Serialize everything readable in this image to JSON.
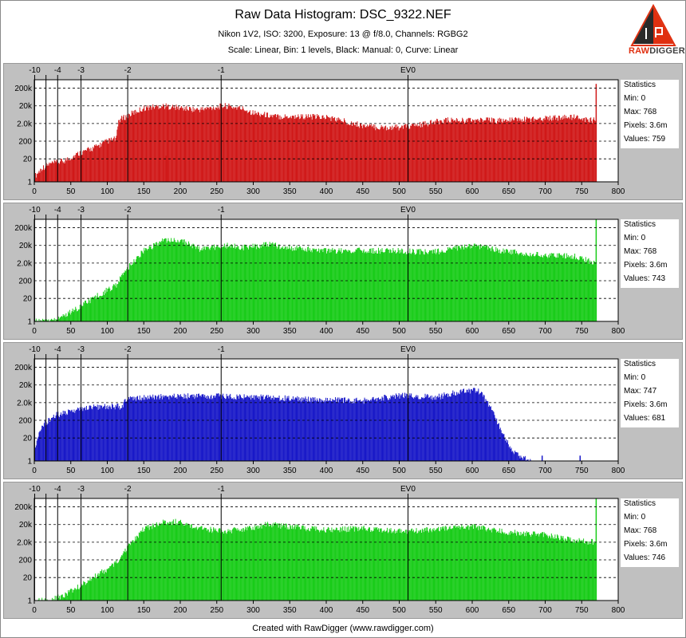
{
  "header": {
    "title": "Raw Data Histogram: DSC_9322.NEF",
    "subtitle1": "Nikon 1V2, ISO: 3200, Exposure: 13 @ f/8.0, Channels: RGBG2",
    "subtitle2": "Scale: Linear, Bin: 1 levels, Black: Manual: 0, Curve: Linear"
  },
  "logo": {
    "raw": "RAW",
    "digger": "DIGGER",
    "accent": "#e03010"
  },
  "footer": {
    "text": "Created with RawDigger (www.rawdigger.com)"
  },
  "chart_data": [
    {
      "type": "area",
      "channel": "R",
      "color": "#d01818",
      "x_ticks": [
        0,
        50,
        100,
        150,
        200,
        250,
        300,
        350,
        400,
        450,
        500,
        550,
        600,
        650,
        700,
        750,
        800
      ],
      "xlim": [
        0,
        800
      ],
      "y_ticks": [
        "1",
        "20",
        "200",
        "2.0k",
        "20k",
        "200k"
      ],
      "y_scale": "log",
      "ylim": [
        1,
        600000
      ],
      "ev_markers": [
        {
          "label": "-10",
          "x": 0.5
        },
        {
          "label": "",
          "x": 16
        },
        {
          "label": "-4",
          "x": 32
        },
        {
          "label": "-3",
          "x": 64
        },
        {
          "label": "-2",
          "x": 128
        },
        {
          "label": "-1",
          "x": 256
        },
        {
          "label": "EV0",
          "x": 512
        }
      ],
      "envelope": [
        [
          0,
          2
        ],
        [
          10,
          6
        ],
        [
          20,
          10
        ],
        [
          40,
          15
        ],
        [
          60,
          40
        ],
        [
          80,
          80
        ],
        [
          100,
          200
        ],
        [
          112,
          280
        ],
        [
          115,
          3000
        ],
        [
          135,
          8000
        ],
        [
          150,
          15000
        ],
        [
          175,
          20000
        ],
        [
          200,
          15000
        ],
        [
          225,
          12000
        ],
        [
          260,
          20000
        ],
        [
          285,
          14000
        ],
        [
          300,
          8000
        ],
        [
          330,
          5000
        ],
        [
          360,
          5000
        ],
        [
          400,
          4500
        ],
        [
          420,
          3000
        ],
        [
          450,
          1500
        ],
        [
          470,
          1200
        ],
        [
          500,
          1200
        ],
        [
          520,
          1500
        ],
        [
          540,
          2000
        ],
        [
          560,
          3000
        ],
        [
          600,
          3000
        ],
        [
          650,
          3000
        ],
        [
          700,
          4000
        ],
        [
          740,
          4500
        ],
        [
          760,
          3000
        ],
        [
          768,
          3000
        ]
      ],
      "spikes": [
        [
          769,
          350000
        ],
        [
          180,
          30
        ]
      ],
      "grid": true,
      "statistics": {
        "title": "Statistics",
        "min": "Min: 0",
        "max": "Max: 768",
        "pixels": "Pixels: 3.6m",
        "values": "Values: 759"
      }
    },
    {
      "type": "area",
      "channel": "G",
      "color": "#18cc18",
      "x_ticks": [
        0,
        50,
        100,
        150,
        200,
        250,
        300,
        350,
        400,
        450,
        500,
        550,
        600,
        650,
        700,
        750,
        800
      ],
      "xlim": [
        0,
        800
      ],
      "y_ticks": [
        "1",
        "20",
        "200",
        "2.0k",
        "20k",
        "200k"
      ],
      "y_scale": "log",
      "ylim": [
        1,
        600000
      ],
      "ev_markers": [
        {
          "label": "-10",
          "x": 0.5
        },
        {
          "label": "",
          "x": 16
        },
        {
          "label": "-4",
          "x": 32
        },
        {
          "label": "-3",
          "x": 64
        },
        {
          "label": "-2",
          "x": 128
        },
        {
          "label": "-1",
          "x": 256
        },
        {
          "label": "EV0",
          "x": 512
        }
      ],
      "envelope": [
        [
          0,
          1
        ],
        [
          20,
          1
        ],
        [
          40,
          2
        ],
        [
          60,
          6
        ],
        [
          80,
          20
        ],
        [
          100,
          60
        ],
        [
          112,
          120
        ],
        [
          130,
          1500
        ],
        [
          150,
          10000
        ],
        [
          175,
          35000
        ],
        [
          200,
          40000
        ],
        [
          225,
          12000
        ],
        [
          260,
          20000
        ],
        [
          290,
          15000
        ],
        [
          320,
          22000
        ],
        [
          350,
          15000
        ],
        [
          400,
          10000
        ],
        [
          450,
          10000
        ],
        [
          500,
          10000
        ],
        [
          540,
          8000
        ],
        [
          560,
          10000
        ],
        [
          600,
          20000
        ],
        [
          640,
          10000
        ],
        [
          700,
          5000
        ],
        [
          740,
          5000
        ],
        [
          760,
          2500
        ],
        [
          768,
          2000
        ]
      ],
      "spikes": [
        [
          769,
          600000
        ]
      ],
      "grid": true,
      "statistics": {
        "title": "Statistics",
        "min": "Min: 0",
        "max": "Max: 768",
        "pixels": "Pixels: 3.6m",
        "values": "Values: 743"
      }
    },
    {
      "type": "area",
      "channel": "B",
      "color": "#1818c8",
      "x_ticks": [
        0,
        50,
        100,
        150,
        200,
        250,
        300,
        350,
        400,
        450,
        500,
        550,
        600,
        650,
        700,
        750,
        800
      ],
      "xlim": [
        0,
        800
      ],
      "y_ticks": [
        "1",
        "20",
        "200",
        "2.0k",
        "20k",
        "200k"
      ],
      "y_scale": "log",
      "ylim": [
        1,
        600000
      ],
      "ev_markers": [
        {
          "label": "-10",
          "x": 0.5
        },
        {
          "label": "",
          "x": 16
        },
        {
          "label": "-4",
          "x": 32
        },
        {
          "label": "-3",
          "x": 64
        },
        {
          "label": "-2",
          "x": 128
        },
        {
          "label": "-1",
          "x": 256
        },
        {
          "label": "EV0",
          "x": 512
        }
      ],
      "envelope": [
        [
          0,
          5
        ],
        [
          10,
          100
        ],
        [
          30,
          400
        ],
        [
          60,
          800
        ],
        [
          90,
          1200
        ],
        [
          120,
          1200
        ],
        [
          125,
          3000
        ],
        [
          150,
          4000
        ],
        [
          200,
          4500
        ],
        [
          250,
          4500
        ],
        [
          290,
          4000
        ],
        [
          300,
          4000
        ],
        [
          400,
          3000
        ],
        [
          450,
          2500
        ],
        [
          500,
          5000
        ],
        [
          550,
          4000
        ],
        [
          580,
          8000
        ],
        [
          600,
          10000
        ],
        [
          610,
          8000
        ],
        [
          625,
          1000
        ],
        [
          640,
          50
        ],
        [
          655,
          3
        ],
        [
          680,
          1
        ]
      ],
      "spikes": [
        [
          695,
          2
        ],
        [
          747,
          2
        ]
      ],
      "grid": true,
      "statistics": {
        "title": "Statistics",
        "min": "Min: 0",
        "max": "Max: 747",
        "pixels": "Pixels: 3.6m",
        "values": "Values: 681"
      }
    },
    {
      "type": "area",
      "channel": "G2",
      "color": "#18cc18",
      "x_ticks": [
        0,
        50,
        100,
        150,
        200,
        250,
        300,
        350,
        400,
        450,
        500,
        550,
        600,
        650,
        700,
        750,
        800
      ],
      "xlim": [
        0,
        800
      ],
      "y_ticks": [
        "1",
        "20",
        "200",
        "2.0k",
        "20k",
        "200k"
      ],
      "y_scale": "log",
      "ylim": [
        1,
        600000
      ],
      "ev_markers": [
        {
          "label": "-10",
          "x": 0.5
        },
        {
          "label": "",
          "x": 16
        },
        {
          "label": "-4",
          "x": 32
        },
        {
          "label": "-3",
          "x": 64
        },
        {
          "label": "-2",
          "x": 128
        },
        {
          "label": "-1",
          "x": 256
        },
        {
          "label": "EV0",
          "x": 512
        }
      ],
      "envelope": [
        [
          0,
          1
        ],
        [
          20,
          1
        ],
        [
          40,
          2
        ],
        [
          60,
          6
        ],
        [
          80,
          20
        ],
        [
          100,
          60
        ],
        [
          112,
          150
        ],
        [
          130,
          1500
        ],
        [
          150,
          12000
        ],
        [
          175,
          25000
        ],
        [
          200,
          30000
        ],
        [
          225,
          12000
        ],
        [
          260,
          8000
        ],
        [
          290,
          12000
        ],
        [
          320,
          20000
        ],
        [
          350,
          15000
        ],
        [
          400,
          10000
        ],
        [
          450,
          12000
        ],
        [
          500,
          8000
        ],
        [
          540,
          10000
        ],
        [
          560,
          12000
        ],
        [
          600,
          15000
        ],
        [
          640,
          8000
        ],
        [
          700,
          5000
        ],
        [
          740,
          2500
        ],
        [
          768,
          2000
        ]
      ],
      "spikes": [
        [
          769,
          600000
        ]
      ],
      "grid": true,
      "statistics": {
        "title": "Statistics",
        "min": "Min: 0",
        "max": "Max: 768",
        "pixels": "Pixels: 3.6m",
        "values": "Values: 746"
      }
    }
  ]
}
